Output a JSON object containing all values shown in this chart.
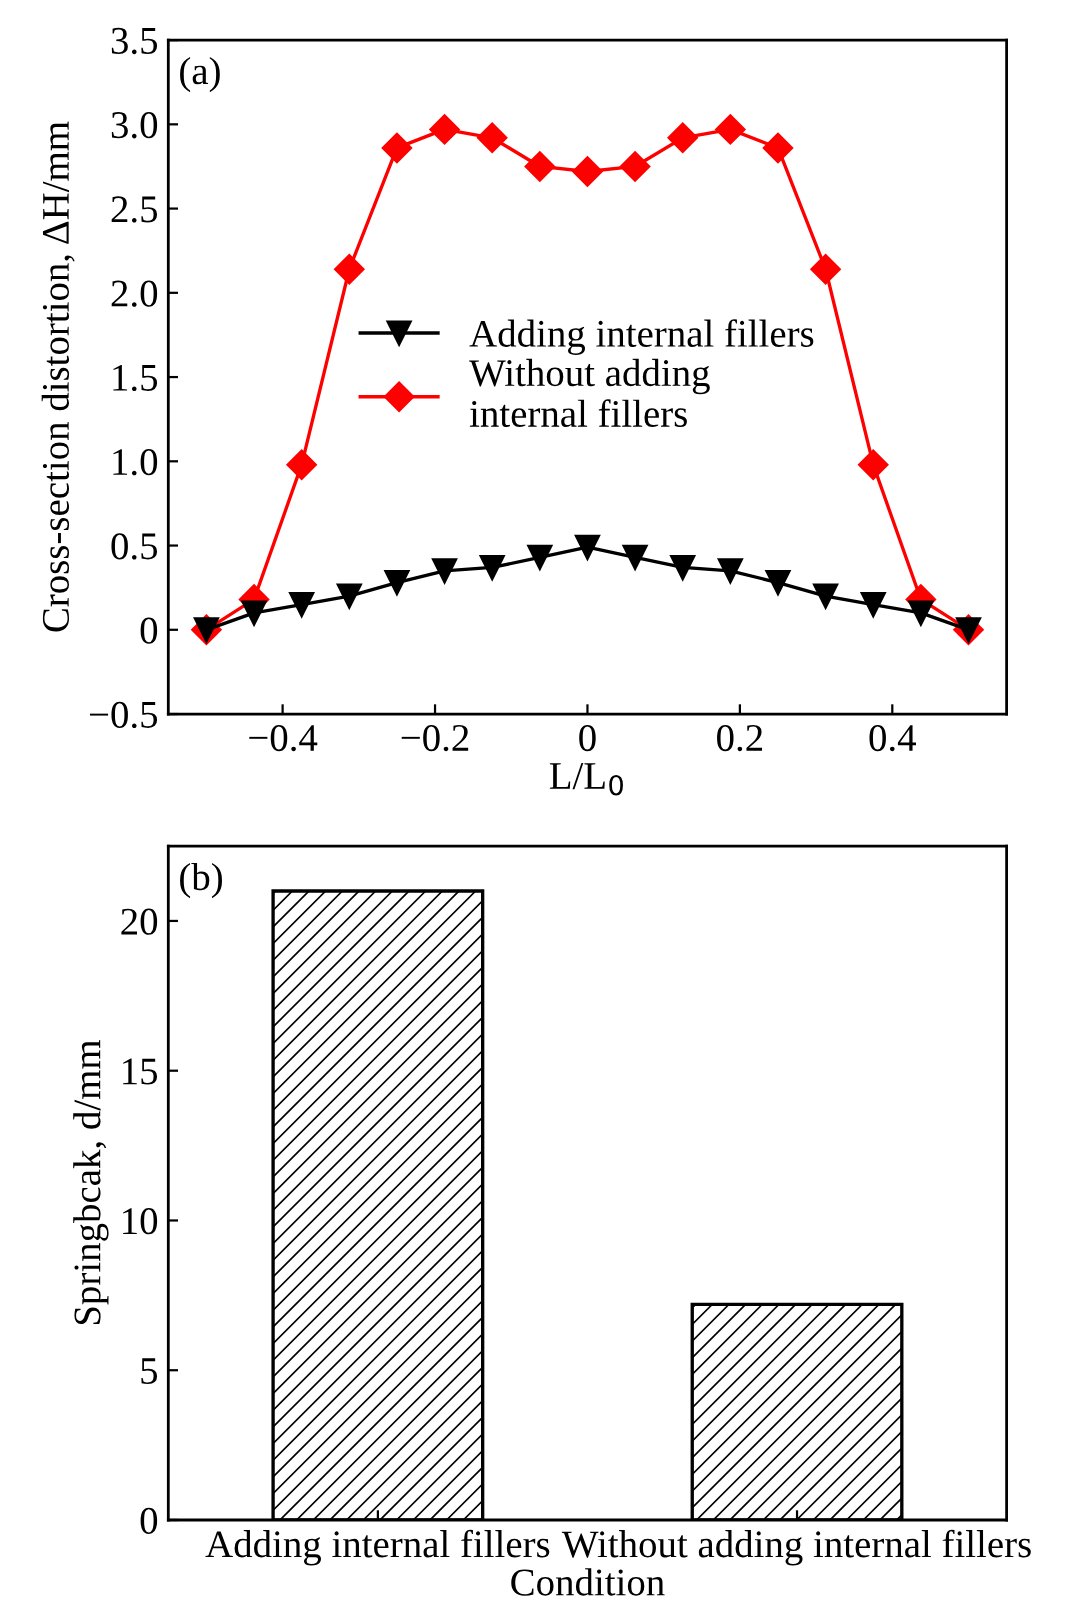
{
  "chart_data": [
    {
      "type": "line",
      "xlabel": "L/L$_{0}$",
      "ylabel": "Cross-section distortion, ΔH/mm",
      "annotations": [
        "(a)"
      ],
      "x": [
        -0.5,
        -0.4375,
        -0.375,
        -0.3125,
        -0.25,
        -0.1875,
        -0.125,
        -0.0625,
        0,
        0.0625,
        0.125,
        0.1875,
        0.25,
        0.3125,
        0.375,
        0.4375,
        0.5
      ],
      "series": [
        {
          "name": "Adding internal fillers",
          "color": "#000000",
          "marker": "triangle",
          "values": [
            0,
            0.1,
            0.15,
            0.2,
            0.28,
            0.35,
            0.37,
            0.43,
            0.49,
            0.43,
            0.37,
            0.35,
            0.28,
            0.2,
            0.15,
            0.1,
            0
          ]
        },
        {
          "name": "Without adding\ninternal fillers",
          "color": "#ff0000",
          "marker": "diamond",
          "values": [
            0,
            0.18,
            0.98,
            2.14,
            2.86,
            2.97,
            2.92,
            2.75,
            2.72,
            2.75,
            2.92,
            2.97,
            2.86,
            2.14,
            0.98,
            0.18,
            0
          ]
        }
      ],
      "xlim": [
        -0.55,
        0.55
      ],
      "xticks": [
        {
          "value": -0.4,
          "label": "−0.4"
        },
        {
          "value": -0.2,
          "label": "−0.2"
        },
        0,
        0.2,
        0.4
      ],
      "ylim": [
        -0.5,
        3.5
      ],
      "yticks": [
        {
          "value": -0.5,
          "label": "−0.5"
        },
        0,
        0.5,
        {
          "value": 1,
          "label": "1.0"
        },
        1.5,
        {
          "value": 2,
          "label": "2.0"
        },
        2.5,
        {
          "value": 3,
          "label": "3.0"
        },
        3.5
      ],
      "grid": false,
      "legend": "center"
    },
    {
      "type": "bar",
      "xlabel": "Condition",
      "ylabel": "Springbcak, d/mm",
      "annotations": [
        "(b)"
      ],
      "categories": [
        "Adding internal fillers",
        "Without adding internal fillers"
      ],
      "values": [
        21.0,
        7.2
      ],
      "ylim": [
        0,
        22.5
      ],
      "yticks": [
        0,
        5,
        10,
        15,
        20
      ],
      "grid": false,
      "legend": false
    }
  ]
}
